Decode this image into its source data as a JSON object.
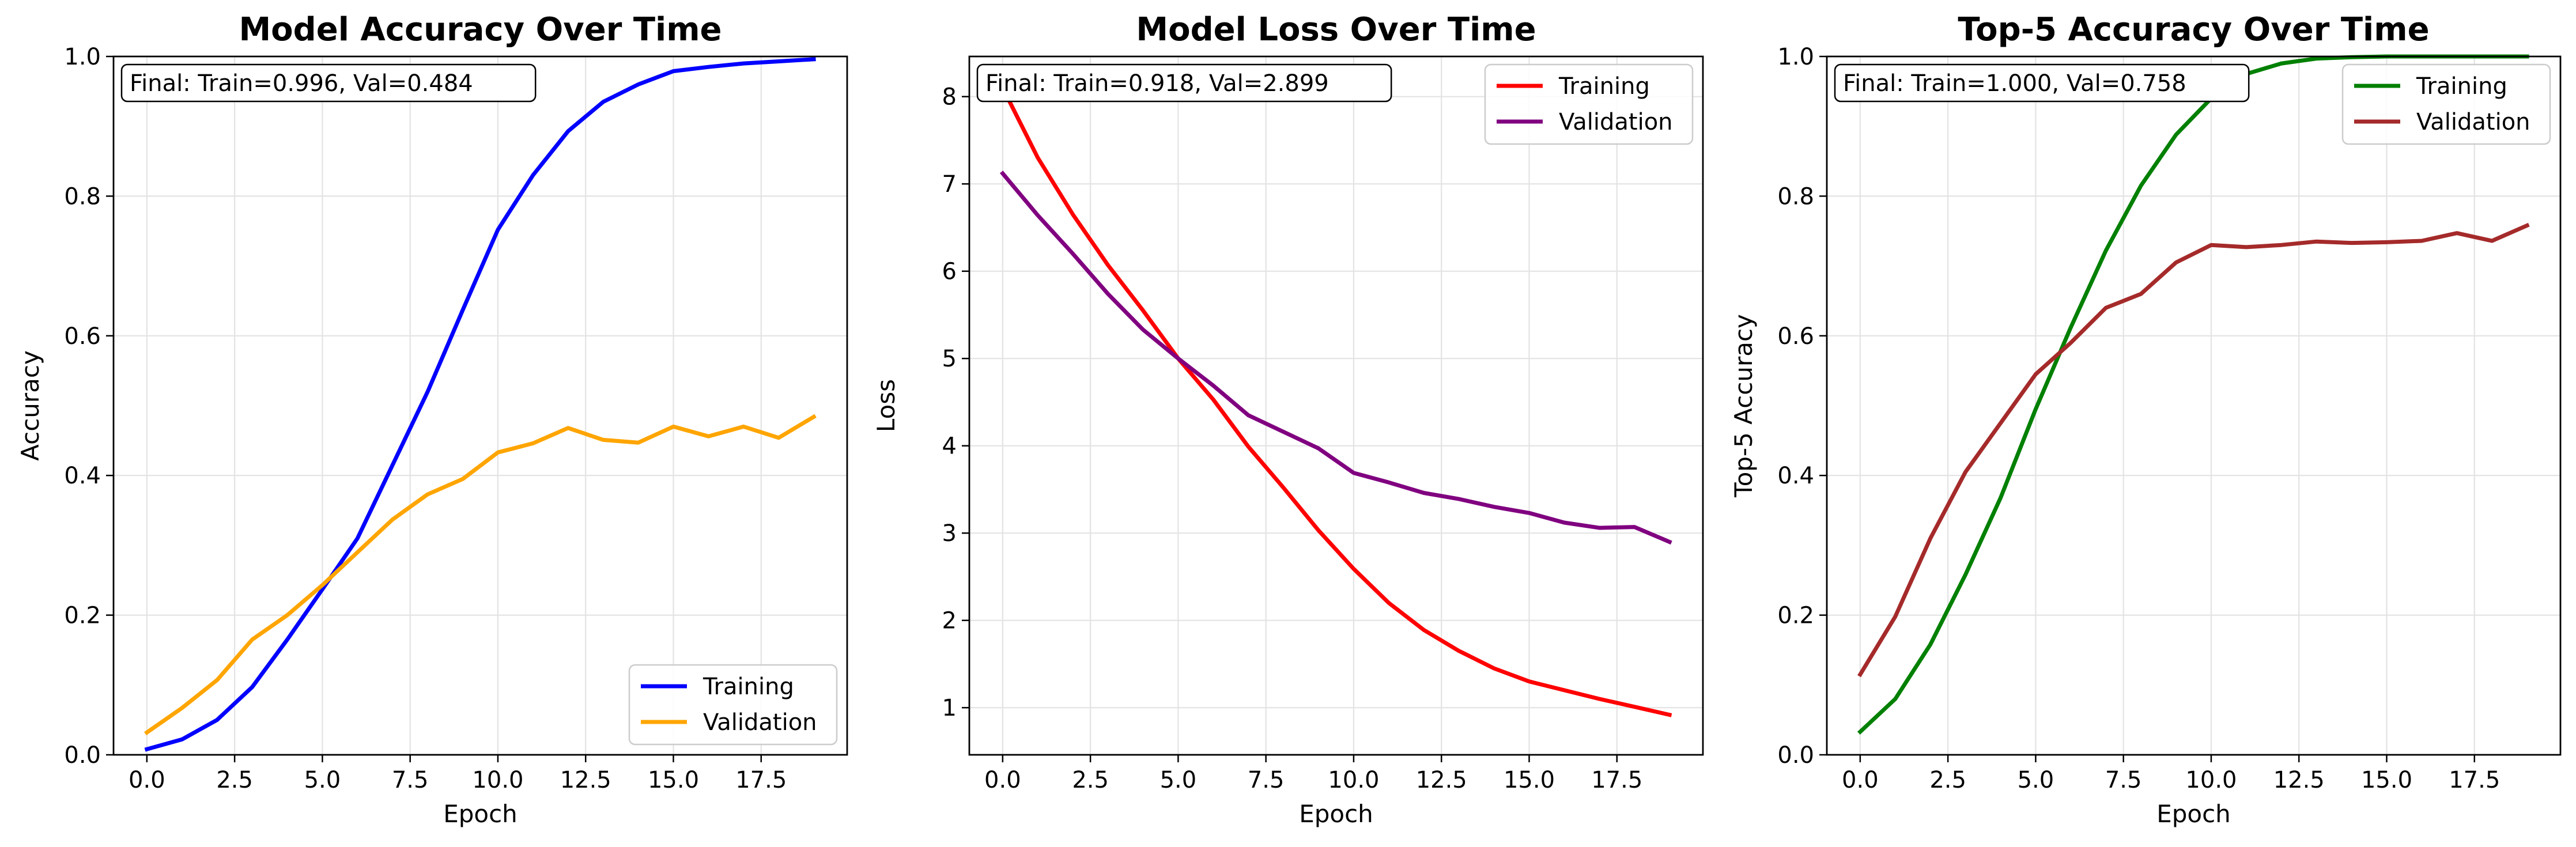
{
  "chart_data": [
    {
      "type": "line",
      "title": "Model Accuracy Over Time",
      "xlabel": "Epoch",
      "ylabel": "Accuracy",
      "xlim": [
        -0.95,
        19.95
      ],
      "ylim": [
        0,
        1.0
      ],
      "xticks": [
        0.0,
        2.5,
        5.0,
        7.5,
        10.0,
        12.5,
        15.0,
        17.5
      ],
      "xtick_labels": [
        "0.0",
        "2.5",
        "5.0",
        "7.5",
        "10.0",
        "12.5",
        "15.0",
        "17.5"
      ],
      "yticks": [
        0.0,
        0.2,
        0.4,
        0.6,
        0.8,
        1.0
      ],
      "ytick_labels": [
        "0.0",
        "0.2",
        "0.4",
        "0.6",
        "0.8",
        "1.0"
      ],
      "grid": true,
      "legend_position": "lower-right",
      "annotation": "Final: Train=0.996, Val=0.484",
      "x": [
        0,
        1,
        2,
        3,
        4,
        5,
        6,
        7,
        8,
        9,
        10,
        11,
        12,
        13,
        14,
        15,
        16,
        17,
        18,
        19
      ],
      "series": [
        {
          "name": "Training",
          "color": "#0000ff",
          "values": [
            0.008,
            0.022,
            0.05,
            0.097,
            0.165,
            0.237,
            0.31,
            0.415,
            0.52,
            0.637,
            0.752,
            0.83,
            0.893,
            0.935,
            0.96,
            0.979,
            0.985,
            0.99,
            0.993,
            0.996
          ]
        },
        {
          "name": "Validation",
          "color": "#ffa500",
          "values": [
            0.032,
            0.067,
            0.107,
            0.165,
            0.2,
            0.243,
            0.29,
            0.337,
            0.373,
            0.395,
            0.433,
            0.446,
            0.468,
            0.451,
            0.447,
            0.47,
            0.456,
            0.47,
            0.454,
            0.484
          ]
        }
      ]
    },
    {
      "type": "line",
      "title": "Model Loss Over Time",
      "xlabel": "Epoch",
      "ylabel": "Loss",
      "xlim": [
        -0.95,
        19.95
      ],
      "ylim": [
        0.46,
        8.46
      ],
      "xticks": [
        0.0,
        2.5,
        5.0,
        7.5,
        10.0,
        12.5,
        15.0,
        17.5
      ],
      "xtick_labels": [
        "0.0",
        "2.5",
        "5.0",
        "7.5",
        "10.0",
        "12.5",
        "15.0",
        "17.5"
      ],
      "yticks": [
        1,
        2,
        3,
        4,
        5,
        6,
        7,
        8
      ],
      "ytick_labels": [
        "1",
        "2",
        "3",
        "4",
        "5",
        "6",
        "7",
        "8"
      ],
      "grid": true,
      "legend_position": "upper-right",
      "annotation": "Final: Train=0.918, Val=2.899",
      "x": [
        0,
        1,
        2,
        3,
        4,
        5,
        6,
        7,
        8,
        9,
        10,
        11,
        12,
        13,
        14,
        15,
        16,
        17,
        18,
        19
      ],
      "series": [
        {
          "name": "Training",
          "color": "#ff0000",
          "values": [
            8.1,
            7.3,
            6.65,
            6.07,
            5.55,
            5.0,
            4.53,
            3.99,
            3.52,
            3.03,
            2.59,
            2.2,
            1.89,
            1.65,
            1.45,
            1.3,
            1.2,
            1.1,
            1.01,
            0.918
          ]
        },
        {
          "name": "Validation",
          "color": "#800080",
          "values": [
            7.12,
            6.64,
            6.2,
            5.74,
            5.33,
            5.0,
            4.69,
            4.35,
            4.16,
            3.97,
            3.69,
            3.58,
            3.46,
            3.39,
            3.3,
            3.23,
            3.12,
            3.06,
            3.07,
            2.899
          ]
        }
      ]
    },
    {
      "type": "line",
      "title": "Top-5 Accuracy Over Time",
      "xlabel": "Epoch",
      "ylabel": "Top-5 Accuracy",
      "xlim": [
        -0.95,
        19.95
      ],
      "ylim": [
        0,
        1.0
      ],
      "xticks": [
        0.0,
        2.5,
        5.0,
        7.5,
        10.0,
        12.5,
        15.0,
        17.5
      ],
      "xtick_labels": [
        "0.0",
        "2.5",
        "5.0",
        "7.5",
        "10.0",
        "12.5",
        "15.0",
        "17.5"
      ],
      "yticks": [
        0.0,
        0.2,
        0.4,
        0.6,
        0.8,
        1.0
      ],
      "ytick_labels": [
        "0.0",
        "0.2",
        "0.4",
        "0.6",
        "0.8",
        "1.0"
      ],
      "grid": true,
      "legend_position": "upper-right",
      "annotation": "Final: Train=1.000, Val=0.758",
      "x": [
        0,
        1,
        2,
        3,
        4,
        5,
        6,
        7,
        8,
        9,
        10,
        11,
        12,
        13,
        14,
        15,
        16,
        17,
        18,
        19
      ],
      "series": [
        {
          "name": "Training",
          "color": "#008000",
          "values": [
            0.033,
            0.08,
            0.158,
            0.258,
            0.368,
            0.495,
            0.612,
            0.722,
            0.815,
            0.888,
            0.94,
            0.975,
            0.99,
            0.997,
            0.999,
            1.0,
            1.0,
            1.0,
            1.0,
            1.0
          ]
        },
        {
          "name": "Validation",
          "color": "#a52a2a",
          "values": [
            0.115,
            0.198,
            0.31,
            0.405,
            0.475,
            0.545,
            0.59,
            0.64,
            0.66,
            0.705,
            0.73,
            0.727,
            0.73,
            0.735,
            0.733,
            0.734,
            0.736,
            0.747,
            0.736,
            0.758
          ]
        }
      ]
    }
  ]
}
